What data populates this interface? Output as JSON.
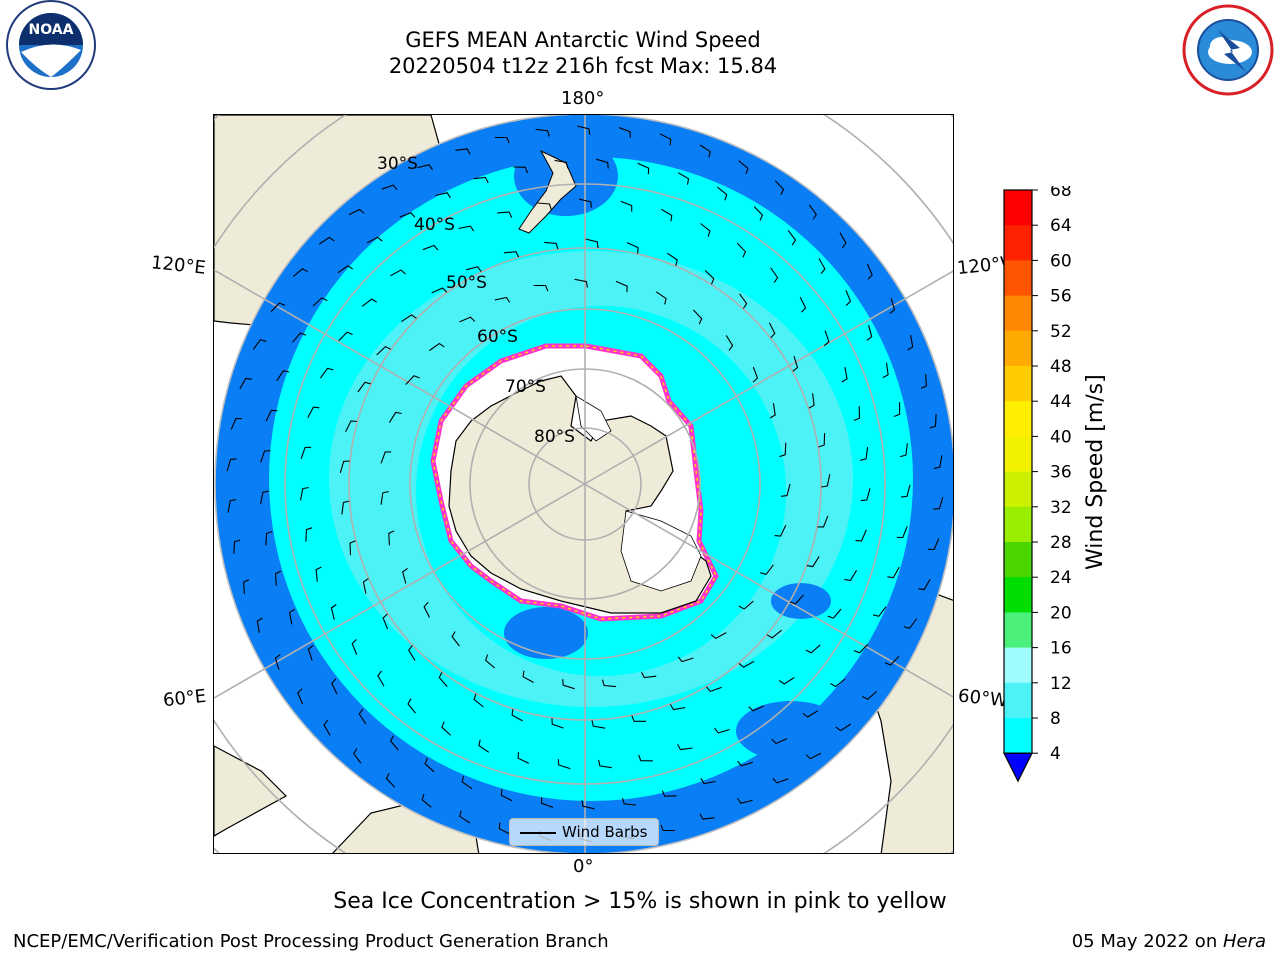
{
  "header": {
    "title_line1": "GEFS MEAN Antarctic Wind Speed",
    "title_line2": "20220504 t12z 216h fcst   Max: 15.84"
  },
  "logos": {
    "left": {
      "text": "NOAA",
      "ring_text": "NATIONAL OCEANIC AND ATMOSPHERIC ADMINISTRATION • U.S. DEPARTMENT OF COMMERCE"
    },
    "right": {
      "ring_text": "NATIONAL WEATHER SERVICE"
    }
  },
  "map": {
    "projection": "south-polar-stereographic",
    "longitude_labels": {
      "top": "180°",
      "bottom": "0°",
      "upper_left": "120°E",
      "lower_left": "60°E",
      "upper_right": "120°W",
      "lower_right": "60°W"
    },
    "latitude_labels": [
      "30°S",
      "40°S",
      "50°S",
      "60°S",
      "70°S",
      "80°S"
    ],
    "legend_label": "Wind Barbs",
    "colors": {
      "land": "#efebd9",
      "ocean_8_12": "#00ffff",
      "ocean_12_16": "#4df2f7",
      "ocean_4_8": "#0a7ef5",
      "sea_ice_edge": "#ff33cc",
      "sea_ice_inner": "#ffd700"
    }
  },
  "colorbar": {
    "label": "Wind Speed [m/s]",
    "ticks": [
      "4",
      "8",
      "12",
      "16",
      "20",
      "24",
      "28",
      "32",
      "36",
      "40",
      "44",
      "48",
      "52",
      "56",
      "60",
      "64",
      "68"
    ],
    "colors": [
      "#0a7ef5",
      "#00ffff",
      "#4df2f7",
      "#9ffcfd",
      "#4bf07a",
      "#00dd00",
      "#4cd600",
      "#99ee00",
      "#ccf000",
      "#f2f200",
      "#ffee00",
      "#ffcc00",
      "#ffaa00",
      "#ff8800",
      "#ff5500",
      "#ff2200",
      "#ff0000"
    ],
    "underflow_color": "#0000ff"
  },
  "footer": {
    "caption": "Sea Ice Concentration > 15% is shown in pink to yellow",
    "branch": "NCEP/EMC/Verification Post Processing Product Generation Branch",
    "date_text": "05 May 2022 on ",
    "machine": "Hera"
  }
}
